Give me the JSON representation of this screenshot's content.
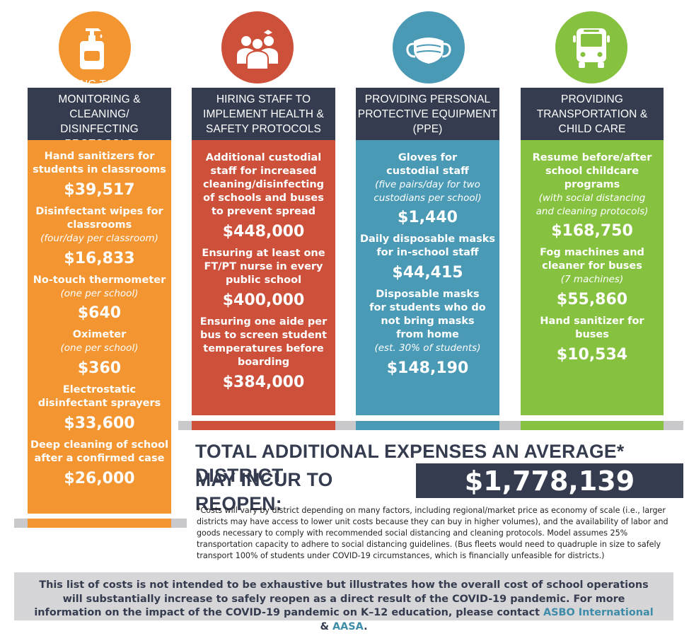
{
  "colors": {
    "orange": "#f39531",
    "red": "#cc503a",
    "blue": "#4a9ab6",
    "green": "#86c240",
    "header_navy": "#353c4f",
    "strip_gray": "#c9c9cb",
    "bottom_gray": "#d6d6d8",
    "link_blue": "#3e8ca8"
  },
  "columns": [
    {
      "icon": "hand-sanitizer-icon",
      "header": [
        "ADHERING TO HEALTH",
        "MONITORING & CLEANING/",
        "DISINFECTING PROTOCOLS"
      ],
      "items": [
        {
          "title": "Hand sanitizers for\nstudents in classrooms",
          "note": "",
          "cost": "$39,517"
        },
        {
          "title": "Disinfectant wipes for\nclassrooms",
          "note": "(four/day per classroom)",
          "cost": "$16,833"
        },
        {
          "title": "No-touch thermometer",
          "note": "(one per school)",
          "cost": "$640"
        },
        {
          "title": "Oximeter",
          "note": "(one per school)",
          "cost": "$360"
        },
        {
          "title": "Electrostatic\ndisinfectant sprayers",
          "note": "",
          "cost": "$33,600"
        },
        {
          "title": "Deep cleaning of school\nafter a confirmed case",
          "note": "",
          "cost": "$26,000"
        }
      ]
    },
    {
      "icon": "staff-group-icon",
      "header": [
        "HIRING STAFF TO",
        "IMPLEMENT HEALTH &",
        "SAFETY PROTOCOLS"
      ],
      "items": [
        {
          "title": "Additional custodial\nstaff for increased\ncleaning/disinfecting\nof schools and buses\nto prevent spread",
          "note": "",
          "cost": "$448,000"
        },
        {
          "title": "Ensuring at least one\nFT/PT nurse in every\npublic school",
          "note": "",
          "cost": "$400,000"
        },
        {
          "title": "Ensuring one aide per\nbus to screen student\ntemperatures before\nboarding",
          "note": "",
          "cost": "$384,000"
        }
      ]
    },
    {
      "icon": "face-mask-icon",
      "header": [
        "PROVIDING PERSONAL",
        "PROTECTIVE EQUIPMENT",
        "(PPE)"
      ],
      "items": [
        {
          "title": "Gloves for\ncustodial staff",
          "note": "(five pairs/day for two\ncustodians per school)",
          "cost": "$1,440"
        },
        {
          "title": "Daily disposable masks\nfor in-school staff",
          "note": "",
          "cost": "$44,415"
        },
        {
          "title": "Disposable masks\nfor students who do\nnot bring masks\nfrom home",
          "note": "(est. 30% of students)",
          "cost": "$148,190"
        }
      ]
    },
    {
      "icon": "bus-icon",
      "header": [
        "PROVIDING",
        "TRANSPORTATION &",
        "CHILD CARE"
      ],
      "items": [
        {
          "title": "Resume before/after\nschool childcare\nprograms",
          "note": "(with social distancing\nand cleaning protocols)",
          "cost": "$168,750"
        },
        {
          "title": "Fog machines and\ncleaner for buses",
          "note": "(7 machines)",
          "cost": "$55,860"
        },
        {
          "title": "Hand sanitizer for\nbuses",
          "note": "",
          "cost": "$10,534"
        }
      ]
    }
  ],
  "total": {
    "line1": "TOTAL ADDITIONAL EXPENSES AN AVERAGE* DISTRICT",
    "line2": "MAY INCUR TO REOPEN:",
    "amount": "$1,778,139"
  },
  "footnote": "*Costs will vary by district depending on many factors, including regional/market price as economy of scale (i.e., larger districts may have access to lower unit costs because they can buy in higher volumes), and the availability of labor and goods necessary to comply with recommended social distancing and cleaning protocols. Model assumes 25% transportation capacity to adhere to social distancing guidelines. (Bus fleets would need to quadruple in size to safely transport 100% of students under COVID-19 circumstances, which is financially unfeasible for districts.)",
  "bottom": {
    "text": "This list of costs is not intended to be exhaustive but illustrates how the overall cost of school operations will substantially increase to safely reopen as a direct result of the COVID-19 pandemic. For more information on the impact of the COVID-19 pandemic on K–12 education, please contact",
    "link1": "ASBO International",
    "amp": "&",
    "link2": "AASA",
    "end": "."
  }
}
